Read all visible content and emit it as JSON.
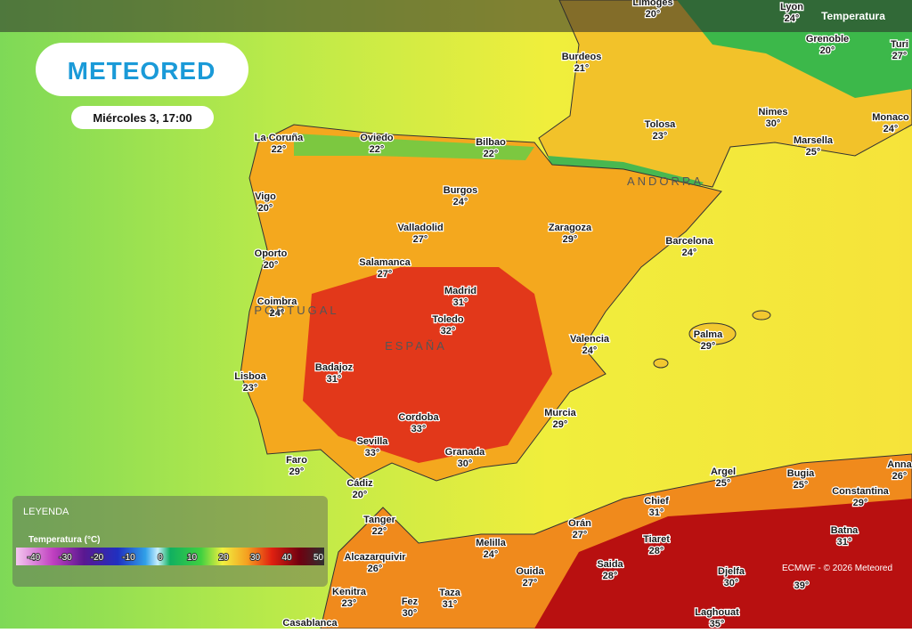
{
  "header": {
    "logo": "METEORED",
    "date": "Miércoles 3, 17:00",
    "layer": "Temperatura"
  },
  "cities": [
    {
      "name": "Limoges",
      "temp": "20°"
    },
    {
      "name": "Lyon",
      "temp": "24°"
    },
    {
      "name": "Grenoble",
      "temp": "20°"
    },
    {
      "name": "Turi",
      "temp": "27°"
    },
    {
      "name": "Burdeos",
      "temp": "21°"
    },
    {
      "name": "Nimes",
      "temp": "30°"
    },
    {
      "name": "Monaco",
      "temp": "24°"
    },
    {
      "name": "Tolosa",
      "temp": "23°"
    },
    {
      "name": "Marsella",
      "temp": "25°"
    },
    {
      "name": "La Coruña",
      "temp": "22°"
    },
    {
      "name": "Oviedo",
      "temp": "22°"
    },
    {
      "name": "Bilbao",
      "temp": "22°"
    },
    {
      "name": "Vigo",
      "temp": "20°"
    },
    {
      "name": "Burgos",
      "temp": "24°"
    },
    {
      "name": "Valladolid",
      "temp": "27°"
    },
    {
      "name": "Zaragoza",
      "temp": "29°"
    },
    {
      "name": "Barcelona",
      "temp": "24°"
    },
    {
      "name": "Oporto",
      "temp": "20°"
    },
    {
      "name": "Salamanca",
      "temp": "27°"
    },
    {
      "name": "Madrid",
      "temp": "31°"
    },
    {
      "name": "Coimbra",
      "temp": "24°"
    },
    {
      "name": "Toledo",
      "temp": "32°"
    },
    {
      "name": "Valencia",
      "temp": "24°"
    },
    {
      "name": "Palma",
      "temp": "29°"
    },
    {
      "name": "Badajoz",
      "temp": "31°"
    },
    {
      "name": "Lisboa",
      "temp": "23°"
    },
    {
      "name": "Murcia",
      "temp": "29°"
    },
    {
      "name": "Cordoba",
      "temp": "33°"
    },
    {
      "name": "Sevilla",
      "temp": "33°"
    },
    {
      "name": "Granada",
      "temp": "30°"
    },
    {
      "name": "Faro",
      "temp": "29°"
    },
    {
      "name": "Argel",
      "temp": "25°"
    },
    {
      "name": "Bugia",
      "temp": "25°"
    },
    {
      "name": "Anna",
      "temp": "26°"
    },
    {
      "name": "Cádiz",
      "temp": "20°"
    },
    {
      "name": "Constantina",
      "temp": "29°"
    },
    {
      "name": "Chief",
      "temp": "31°"
    },
    {
      "name": "Tanger",
      "temp": "22°"
    },
    {
      "name": "Orán",
      "temp": "27°"
    },
    {
      "name": "Batna",
      "temp": "31°"
    },
    {
      "name": "Tiaret",
      "temp": "28°"
    },
    {
      "name": "Melilla",
      "temp": "24°"
    },
    {
      "name": "Alcazarquivir",
      "temp": "26°"
    },
    {
      "name": "Saida",
      "temp": "28°"
    },
    {
      "name": "Ouida",
      "temp": "27°"
    },
    {
      "name": "Djelfa",
      "temp": "30°"
    },
    {
      "temp": "39°"
    },
    {
      "name": "Kenitra",
      "temp": "23°"
    },
    {
      "name": "Fez",
      "temp": "30°"
    },
    {
      "name": "Taza",
      "temp": "31°"
    },
    {
      "name": "Laghouat",
      "temp": "35°"
    },
    {
      "name": "Casablanca"
    }
  ],
  "regions": [
    "ANDORRA",
    "PORTUGAL",
    "ESPAÑA"
  ],
  "legend": {
    "title": "LEYENDA",
    "subtitle": "Temperatura (°C)",
    "ticks": [
      -40,
      -30,
      -20,
      -10,
      0,
      10,
      20,
      30,
      40,
      50
    ]
  },
  "credit": "ECMWF - © 2026 Meteored"
}
